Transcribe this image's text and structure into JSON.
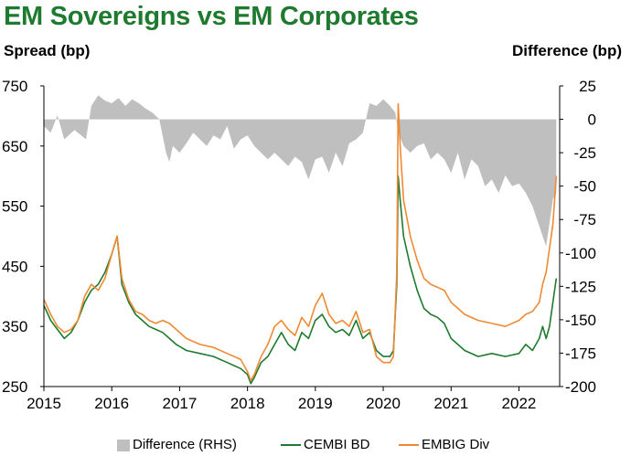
{
  "chart_data": {
    "type": "line",
    "title": "EM Sovereigns vs EM Corporates",
    "ylabel": "Spread (bp)",
    "ylabel_right": "Difference (bp)",
    "x_ticks": [
      "2015",
      "2016",
      "2017",
      "2018",
      "2019",
      "2020",
      "2021",
      "2022"
    ],
    "y_ticks": [
      "750",
      "650",
      "550",
      "450",
      "350",
      "250"
    ],
    "y2_ticks": [
      "25",
      "0",
      "-25",
      "-50",
      "-75",
      "-100",
      "-125",
      "-150",
      "-175",
      "-200"
    ],
    "xlim": [
      2015.0,
      2022.6
    ],
    "ylim": [
      250,
      750
    ],
    "y2lim": [
      -200,
      25
    ],
    "grid": false,
    "legend_position": "bottom",
    "series": [
      {
        "name": "Difference (RHS)",
        "axis": "right",
        "kind": "area",
        "color": "#bfbfbf",
        "x": [
          2015.0,
          2015.1,
          2015.2,
          2015.3,
          2015.45,
          2015.55,
          2015.62,
          2015.7,
          2015.8,
          2015.9,
          2016.0,
          2016.1,
          2016.2,
          2016.3,
          2016.4,
          2016.5,
          2016.6,
          2016.7,
          2016.8,
          2016.85,
          2016.9,
          2017.0,
          2017.1,
          2017.2,
          2017.3,
          2017.4,
          2017.5,
          2017.6,
          2017.7,
          2017.8,
          2017.9,
          2018.0,
          2018.1,
          2018.2,
          2018.3,
          2018.4,
          2018.5,
          2018.6,
          2018.7,
          2018.8,
          2018.9,
          2019.0,
          2019.1,
          2019.2,
          2019.3,
          2019.4,
          2019.5,
          2019.6,
          2019.7,
          2019.8,
          2019.9,
          2020.0,
          2020.1,
          2020.18,
          2020.22,
          2020.3,
          2020.4,
          2020.5,
          2020.6,
          2020.7,
          2020.8,
          2020.9,
          2021.0,
          2021.1,
          2021.2,
          2021.3,
          2021.4,
          2021.5,
          2021.6,
          2021.7,
          2021.8,
          2021.9,
          2022.0,
          2022.1,
          2022.2,
          2022.3,
          2022.4,
          2022.5,
          2022.55
        ],
        "values": [
          -5,
          -10,
          3,
          -15,
          -8,
          -12,
          -15,
          10,
          18,
          14,
          12,
          16,
          10,
          15,
          12,
          8,
          5,
          0,
          -25,
          -32,
          -20,
          -25,
          -18,
          -10,
          -15,
          -20,
          -12,
          -15,
          -5,
          -22,
          -15,
          -12,
          -20,
          -25,
          -30,
          -25,
          -30,
          -35,
          -28,
          -32,
          -45,
          -30,
          -28,
          -40,
          -25,
          -35,
          -18,
          -15,
          -10,
          12,
          10,
          15,
          10,
          5,
          -10,
          -20,
          -25,
          -20,
          -18,
          -30,
          -25,
          -30,
          -40,
          -25,
          -45,
          -30,
          -35,
          -50,
          -45,
          -55,
          -42,
          -50,
          -48,
          -55,
          -65,
          -80,
          -95,
          -60,
          -55
        ]
      },
      {
        "name": "CEMBI BD",
        "axis": "left",
        "kind": "line",
        "color": "#1e7a2e",
        "x": [
          2015.0,
          2015.1,
          2015.2,
          2015.3,
          2015.4,
          2015.5,
          2015.6,
          2015.7,
          2015.8,
          2015.9,
          2016.0,
          2016.08,
          2016.15,
          2016.25,
          2016.35,
          2016.45,
          2016.55,
          2016.65,
          2016.75,
          2016.85,
          2016.95,
          2017.1,
          2017.3,
          2017.5,
          2017.7,
          2017.9,
          2018.0,
          2018.05,
          2018.1,
          2018.2,
          2018.3,
          2018.4,
          2018.5,
          2018.6,
          2018.7,
          2018.8,
          2018.9,
          2019.0,
          2019.1,
          2019.2,
          2019.3,
          2019.4,
          2019.5,
          2019.6,
          2019.7,
          2019.8,
          2019.9,
          2020.0,
          2020.1,
          2020.15,
          2020.2,
          2020.22,
          2020.25,
          2020.3,
          2020.4,
          2020.5,
          2020.6,
          2020.7,
          2020.8,
          2020.9,
          2021.0,
          2021.2,
          2021.4,
          2021.6,
          2021.8,
          2022.0,
          2022.1,
          2022.2,
          2022.3,
          2022.35,
          2022.4,
          2022.45,
          2022.5,
          2022.55
        ],
        "values": [
          385,
          360,
          345,
          330,
          340,
          360,
          390,
          410,
          420,
          440,
          470,
          500,
          420,
          390,
          370,
          360,
          350,
          345,
          340,
          330,
          320,
          310,
          305,
          300,
          290,
          280,
          270,
          255,
          265,
          290,
          300,
          320,
          340,
          320,
          310,
          340,
          330,
          360,
          370,
          350,
          340,
          345,
          335,
          360,
          330,
          340,
          310,
          300,
          300,
          310,
          420,
          600,
          560,
          500,
          450,
          410,
          380,
          370,
          365,
          355,
          330,
          310,
          300,
          305,
          300,
          305,
          320,
          310,
          330,
          350,
          330,
          350,
          390,
          430
        ]
      },
      {
        "name": "EMBIG Div",
        "axis": "left",
        "kind": "line",
        "color": "#ef8a33",
        "x": [
          2015.0,
          2015.1,
          2015.2,
          2015.3,
          2015.4,
          2015.5,
          2015.6,
          2015.7,
          2015.8,
          2015.9,
          2016.0,
          2016.08,
          2016.15,
          2016.25,
          2016.35,
          2016.45,
          2016.55,
          2016.65,
          2016.75,
          2016.85,
          2016.95,
          2017.1,
          2017.3,
          2017.5,
          2017.7,
          2017.9,
          2018.0,
          2018.05,
          2018.1,
          2018.2,
          2018.3,
          2018.4,
          2018.5,
          2018.6,
          2018.7,
          2018.8,
          2018.9,
          2019.0,
          2019.1,
          2019.2,
          2019.3,
          2019.4,
          2019.5,
          2019.6,
          2019.7,
          2019.8,
          2019.9,
          2020.0,
          2020.1,
          2020.15,
          2020.2,
          2020.22,
          2020.25,
          2020.3,
          2020.4,
          2020.5,
          2020.6,
          2020.7,
          2020.8,
          2020.9,
          2021.0,
          2021.2,
          2021.4,
          2021.6,
          2021.8,
          2022.0,
          2022.1,
          2022.2,
          2022.3,
          2022.35,
          2022.4,
          2022.45,
          2022.5,
          2022.55
        ],
        "values": [
          395,
          370,
          350,
          340,
          345,
          360,
          400,
          420,
          410,
          430,
          470,
          500,
          430,
          395,
          375,
          370,
          360,
          355,
          360,
          355,
          345,
          330,
          320,
          315,
          305,
          295,
          275,
          260,
          270,
          300,
          320,
          350,
          360,
          345,
          335,
          365,
          350,
          385,
          405,
          370,
          355,
          360,
          350,
          375,
          340,
          345,
          300,
          290,
          290,
          300,
          440,
          720,
          650,
          560,
          500,
          460,
          430,
          420,
          415,
          410,
          390,
          370,
          360,
          355,
          350,
          360,
          370,
          375,
          390,
          420,
          440,
          480,
          520,
          600
        ]
      }
    ]
  }
}
